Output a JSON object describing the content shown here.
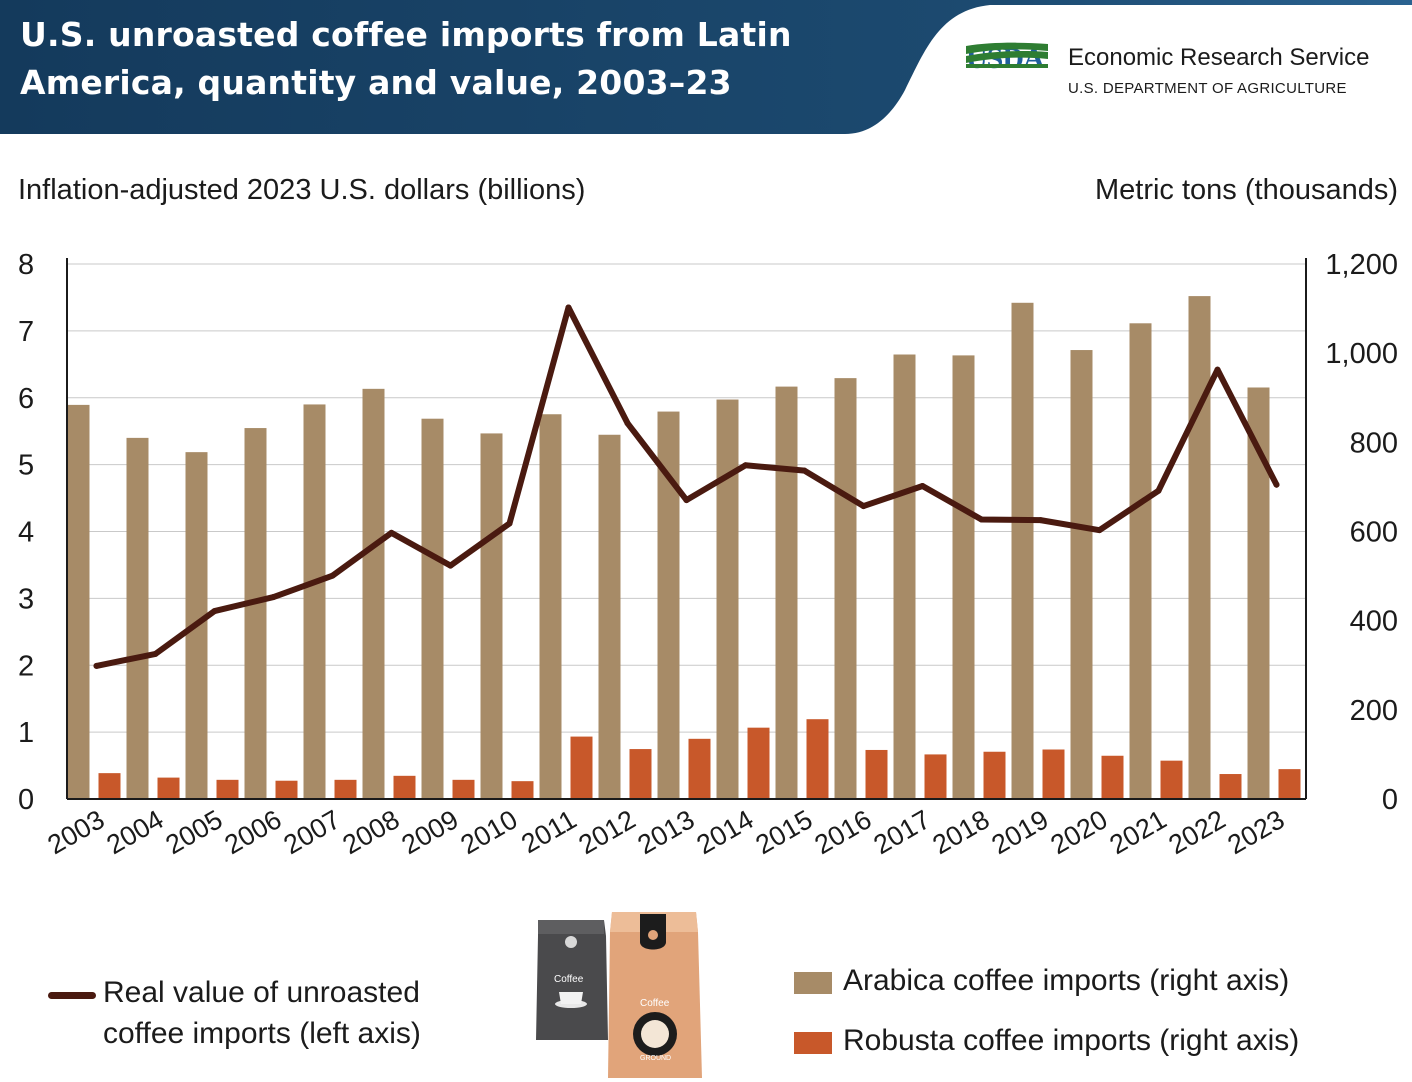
{
  "header": {
    "title_line1": "U.S. unroasted coffee imports from Latin",
    "title_line2": "America, quantity and value, 2003–23",
    "background_color": "#173e5f"
  },
  "logo": {
    "mark_text": "USDA",
    "agency": "Economic Research Service",
    "department": "U.S. DEPARTMENT OF AGRICULTURE"
  },
  "chart_data": {
    "type": "bar",
    "left_axis": {
      "label": "Inflation-adjusted 2023 U.S. dollars (billions)",
      "ylim": [
        0,
        8
      ],
      "ticks": [
        "0",
        "1",
        "2",
        "3",
        "4",
        "5",
        "6",
        "7",
        "8"
      ]
    },
    "right_axis": {
      "label": "Metric tons (thousands)",
      "ylim": [
        0,
        1200
      ],
      "ticks": [
        "0",
        "200",
        "400",
        "600",
        "800",
        "1,000",
        "1,200"
      ]
    },
    "grid": true,
    "categories": [
      "2003",
      "2004",
      "2005",
      "2006",
      "2007",
      "2008",
      "2009",
      "2010",
      "2011",
      "2012",
      "2013",
      "2014",
      "2015",
      "2016",
      "2017",
      "2018",
      "2019",
      "2020",
      "2021",
      "2022",
      "2023"
    ],
    "series": [
      {
        "name": "Arabica coffee imports (right axis)",
        "kind": "bar",
        "axis": "right",
        "color": "#a78b67",
        "values": [
          884,
          810,
          778,
          832,
          885,
          920,
          853,
          820,
          863,
          817,
          869,
          896,
          925,
          944,
          997,
          995,
          1113,
          1007,
          1067,
          1128,
          923
        ]
      },
      {
        "name": "Robusta coffee imports (right axis)",
        "kind": "bar",
        "axis": "right",
        "color": "#c8582a",
        "values": [
          58,
          48,
          43,
          41,
          43,
          52,
          43,
          40,
          140,
          112,
          135,
          160,
          179,
          110,
          100,
          106,
          111,
          97,
          86,
          56,
          67
        ]
      },
      {
        "name": "Real value of unroasted coffee imports (left axis)",
        "kind": "line",
        "axis": "left",
        "color": "#4a1a10",
        "values": [
          1.99,
          2.17,
          2.81,
          3.02,
          3.34,
          3.98,
          3.49,
          4.12,
          7.35,
          5.62,
          4.47,
          4.99,
          4.91,
          4.38,
          4.68,
          4.18,
          4.17,
          4.02,
          4.61,
          6.42,
          4.7
        ]
      }
    ]
  },
  "legend": {
    "line_label": "Real value of unroasted coffee imports (left axis)",
    "arabica_label": "Arabica coffee imports (right axis)",
    "robusta_label": "Robusta coffee imports (right axis)"
  },
  "illustration": {
    "bag1_text": "Coffee",
    "bag2_text": "Coffee",
    "bag2_subtext": "GROUND"
  }
}
